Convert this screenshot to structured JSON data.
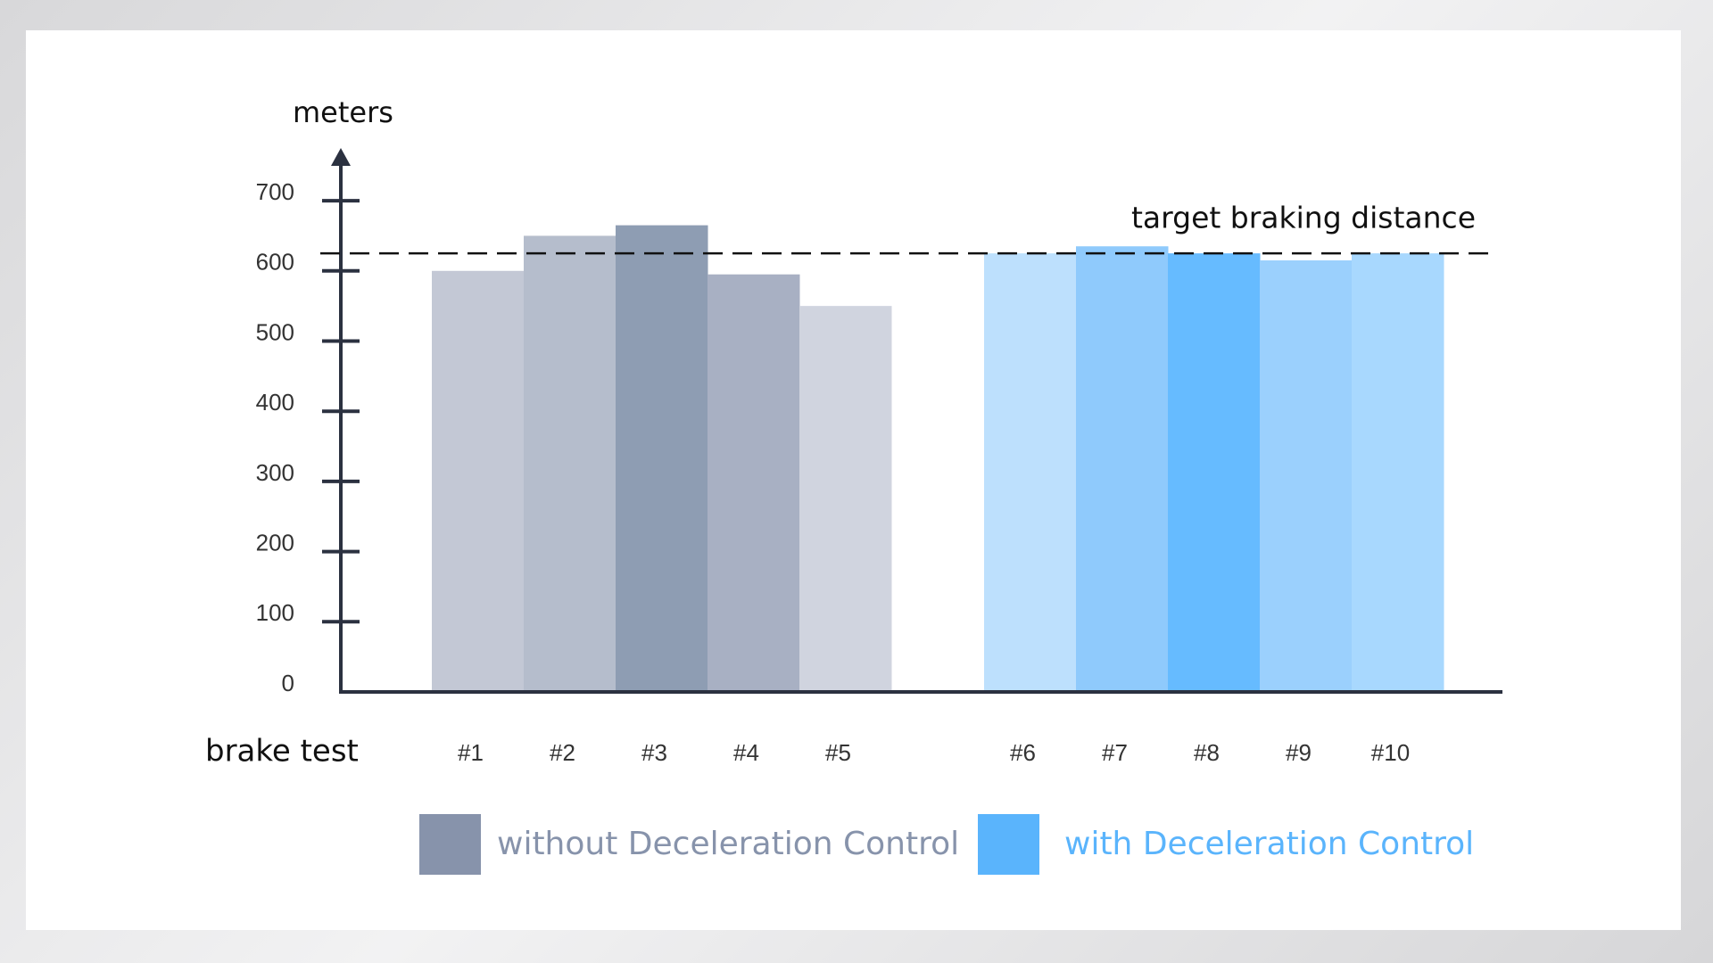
{
  "chart_data": {
    "type": "bar",
    "y_label": "meters",
    "x_label": "brake test",
    "ylim": [
      0,
      770
    ],
    "yticks": [
      0,
      100,
      200,
      300,
      400,
      500,
      600,
      700
    ],
    "series": [
      {
        "name": "without Deceleration Control",
        "color": "#8793ab",
        "categories": [
          "#1",
          "#2",
          "#3",
          "#4",
          "#5"
        ],
        "values": [
          600,
          650,
          665,
          595,
          550
        ],
        "bar_colors": [
          "#c3c8d5",
          "#b5bdcc",
          "#8e9db3",
          "#a8b0c3",
          "#d0d4df"
        ]
      },
      {
        "name": "with Deceleration Control",
        "color": "#5ab4fc",
        "categories": [
          "#6",
          "#7",
          "#8",
          "#9",
          "#10"
        ],
        "values": [
          625,
          635,
          625,
          615,
          625
        ],
        "bar_colors": [
          "#bde0fd",
          "#8fcafc",
          "#66bbff",
          "#9bd0fd",
          "#a8d8fe"
        ]
      }
    ],
    "reference_line": {
      "label": "target braking distance",
      "value": 625
    }
  }
}
